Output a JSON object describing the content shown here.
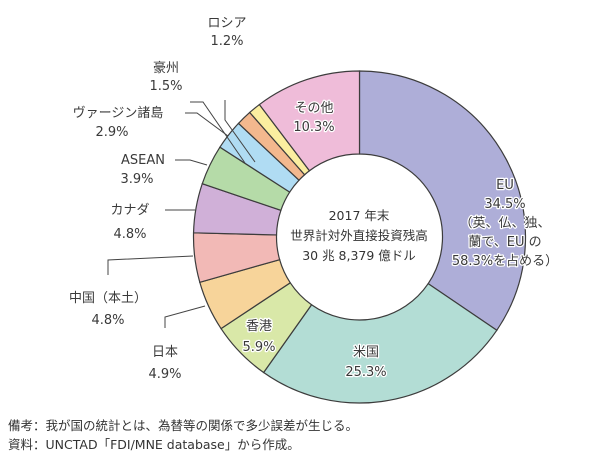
{
  "chart_data": {
    "type": "pie",
    "variant": "donut",
    "title": "2017年末 世界計対外直接投資残高 30兆8,379億ドル",
    "center_label": [
      "2017 年末",
      "世界計対外直接投資残高",
      "30 兆 8,379 億ドル"
    ],
    "start_angle": "12 o'clock, clockwise",
    "slices": [
      {
        "name": "EU",
        "value": 34.5,
        "label": "EU",
        "pct": "34.5%",
        "note": [
          "（英、仏、独、",
          "蘭で、EU の",
          "58.3%を占める）"
        ],
        "color": "#aeaed8"
      },
      {
        "name": "米国",
        "value": 25.3,
        "label": "米国",
        "pct": "25.3%",
        "color": "#b3ddd5"
      },
      {
        "name": "香港",
        "value": 5.9,
        "label": "香港",
        "pct": "5.9%",
        "color": "#d9e8a8"
      },
      {
        "name": "日本",
        "value": 4.9,
        "label": "日本",
        "pct": "4.9%",
        "color": "#f7d49a"
      },
      {
        "name": "中国（本土）",
        "value": 4.8,
        "label": "中国（本土）",
        "pct": "4.8%",
        "color": "#f2b9b6"
      },
      {
        "name": "カナダ",
        "value": 4.8,
        "label": "カナダ",
        "pct": "4.8%",
        "color": "#d0b0d8"
      },
      {
        "name": "ASEAN",
        "value": 3.9,
        "label": "ASEAN",
        "pct": "3.9%",
        "color": "#b5dba8"
      },
      {
        "name": "ヴァージン諸島",
        "value": 2.9,
        "label": "ヴァージン諸島",
        "pct": "2.9%",
        "color": "#b0dcf3"
      },
      {
        "name": "豪州",
        "value": 1.5,
        "label": "豪州",
        "pct": "1.5%",
        "color": "#f3b88e"
      },
      {
        "name": "ロシア",
        "value": 1.2,
        "label": "ロシア",
        "pct": "1.2%",
        "color": "#fbeea0"
      },
      {
        "name": "その他",
        "value": 10.3,
        "label": "その他",
        "pct": "10.3%",
        "color": "#efbcd9"
      }
    ],
    "unit": "%"
  },
  "notes": {
    "remark": "備考：我が国の統計とは、為替等の関係で多少誤差が生じる。",
    "source": "資料：UNCTAD「FDI/MNE database」から作成。"
  }
}
